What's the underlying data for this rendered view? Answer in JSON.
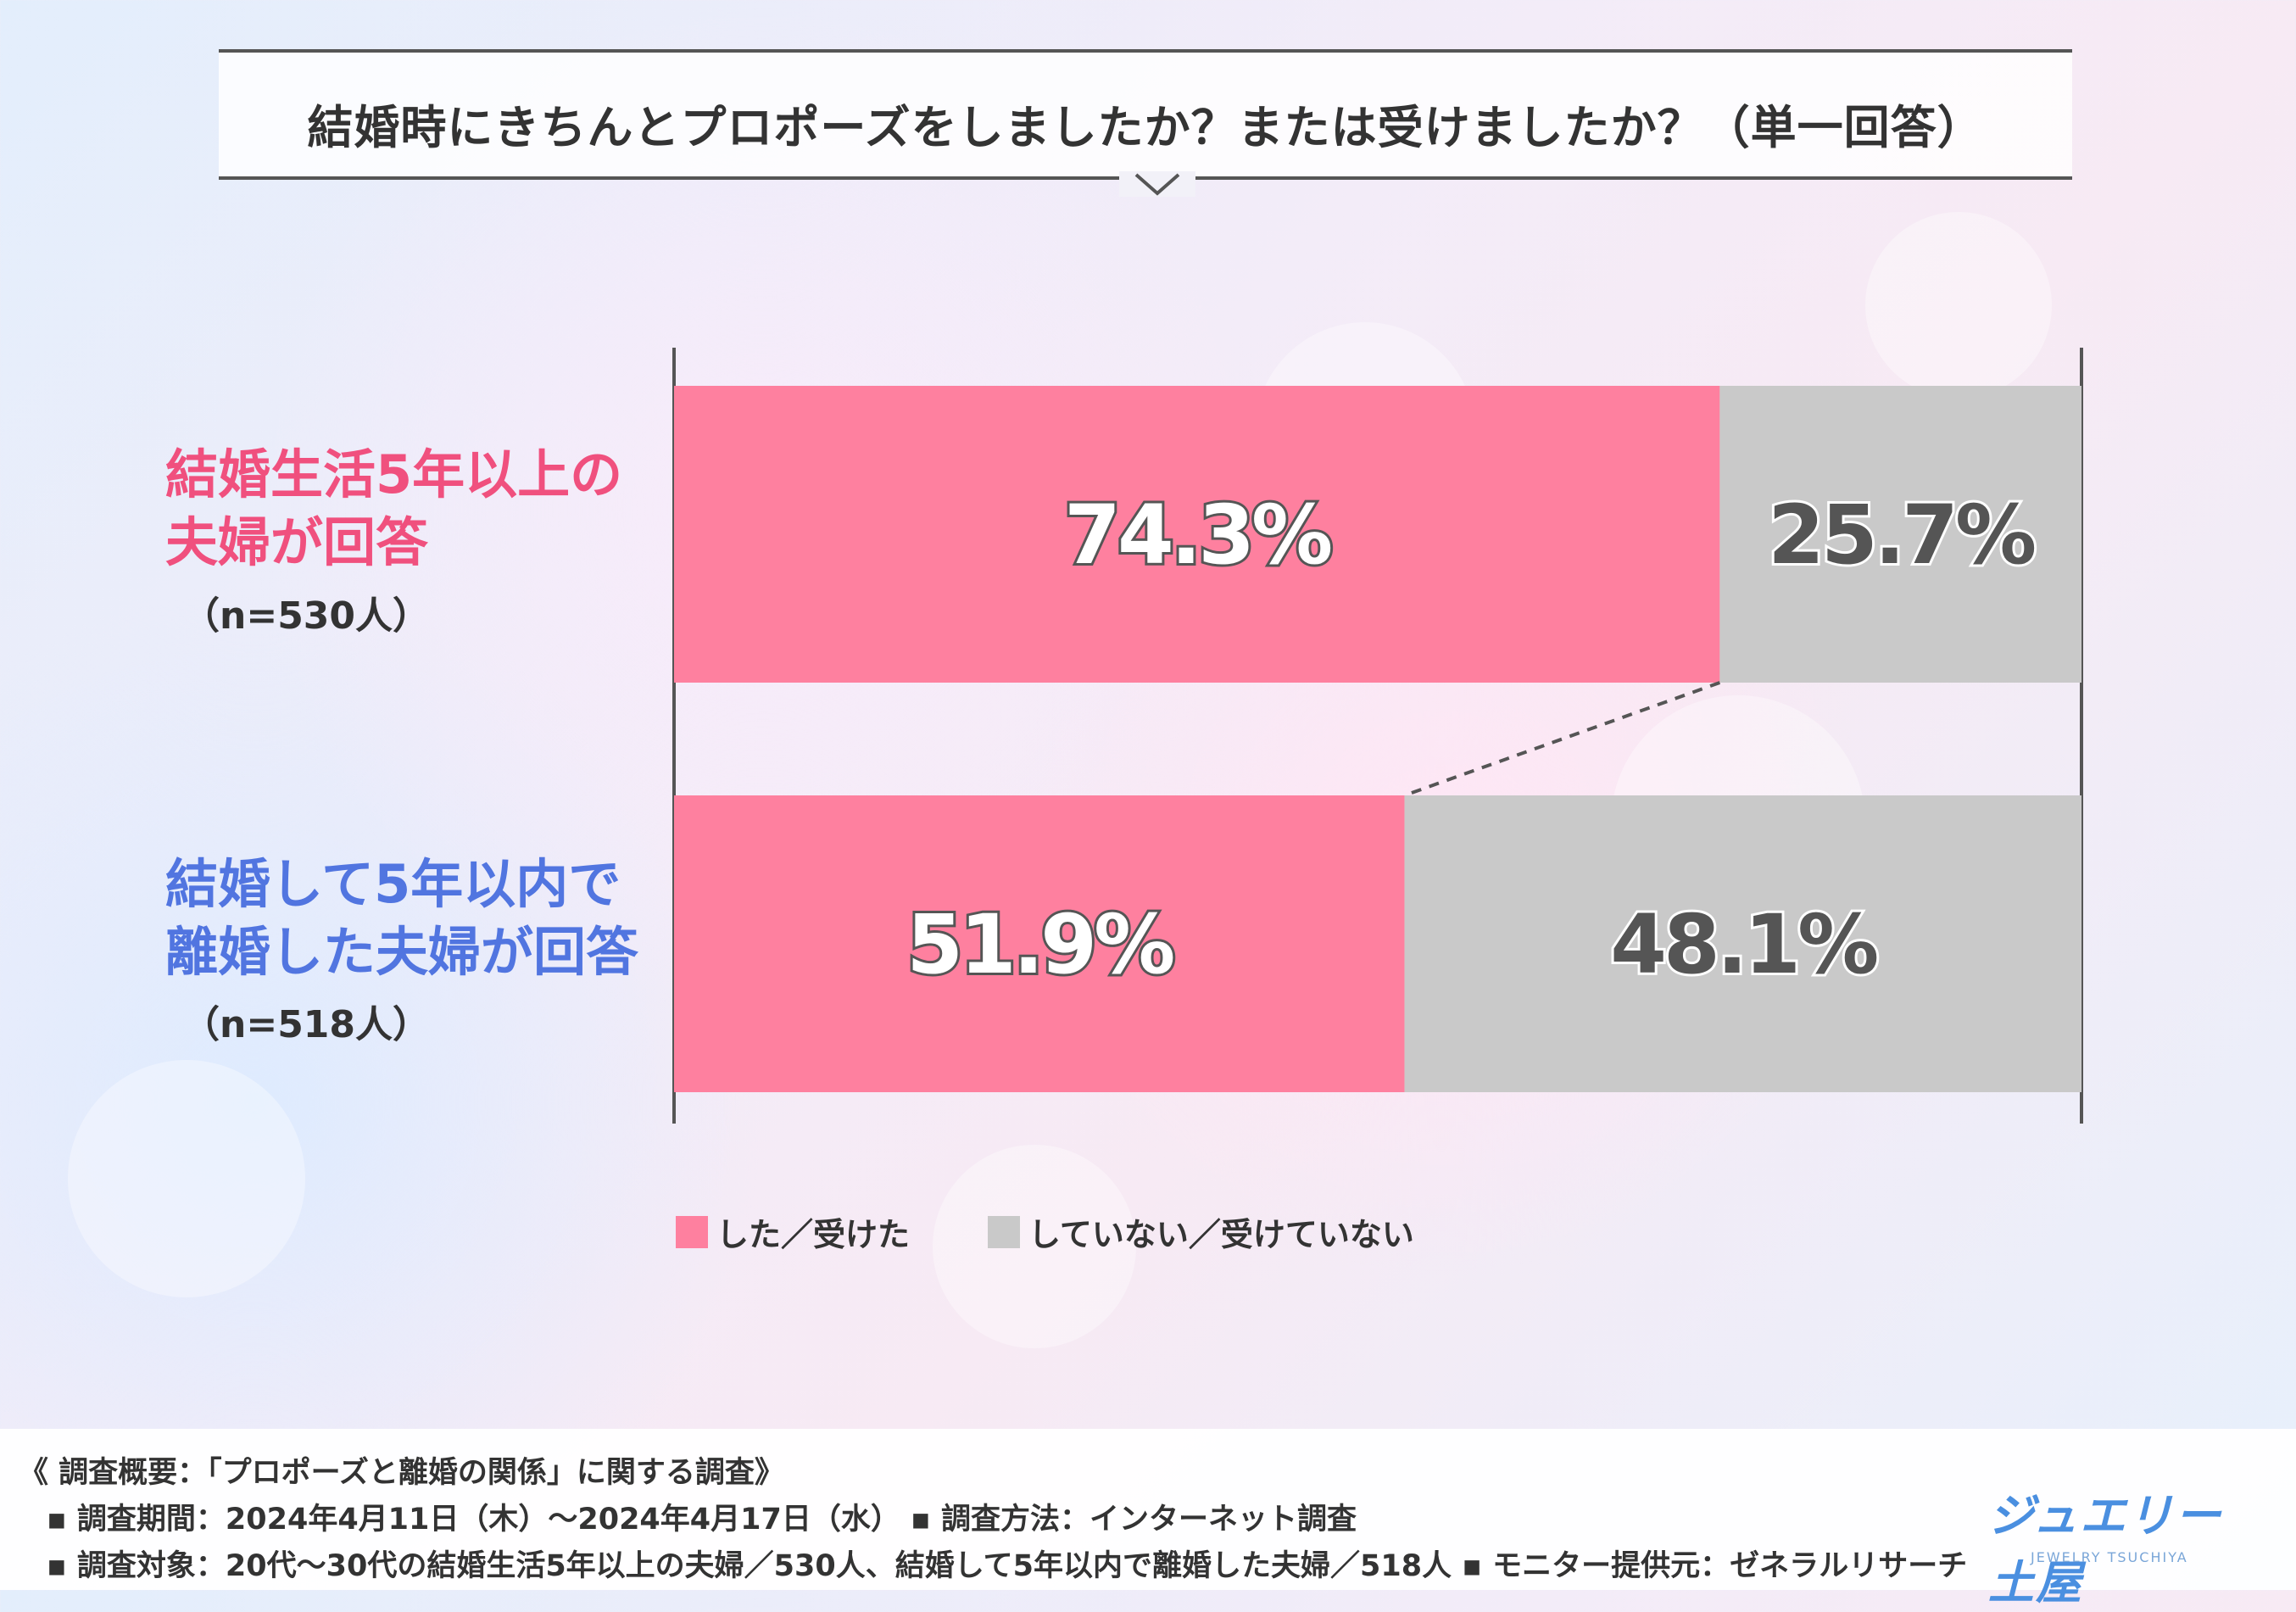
{
  "title": "結婚時にきちんとプロポーズをしましたか？または受けましたか？（単一回答）",
  "chart_data": {
    "type": "bar",
    "orientation": "horizontal-stacked-100",
    "categories": [
      "結婚生活5年以上の夫婦が回答",
      "結婚して5年以内で離婚した夫婦が回答"
    ],
    "series": [
      {
        "name": "した／受けた",
        "values": [
          74.3,
          51.9
        ],
        "color": "#fe809f"
      },
      {
        "name": "していない／受けていない",
        "values": [
          25.7,
          48.1
        ],
        "color": "#c9c9c9"
      }
    ],
    "value_labels": [
      [
        "74.3%",
        "25.7%"
      ],
      [
        "51.9%",
        "48.1%"
      ]
    ],
    "xlim": [
      0,
      100
    ]
  },
  "rows": [
    {
      "line1": "結婚生活5年以上の",
      "line2": "夫婦が回答",
      "n": "（n=530人）"
    },
    {
      "line1": "結婚して5年以内で",
      "line2": "離婚した夫婦が回答",
      "n": "（n=518人）"
    }
  ],
  "legend": {
    "did": "した／受けた",
    "did_not": "していない／受けていない"
  },
  "footer": {
    "heading": "《 調査概要：「プロポーズと離婚の関係」に関する調査》",
    "line1": "▪ 調査期間：2024年4月11日（木）～2024年4月17日（水） ▪ 調査方法：インターネット調査",
    "line2": "▪ 調査対象：20代～30代の結婚生活5年以上の夫婦／530人、結婚して5年以内で離婚した夫婦／518人 ▪ モニター提供元：ゼネラルリサーチ"
  },
  "logo": {
    "name": "ジュエリー土屋",
    "sub": "JEWELRY TSUCHIYA"
  }
}
